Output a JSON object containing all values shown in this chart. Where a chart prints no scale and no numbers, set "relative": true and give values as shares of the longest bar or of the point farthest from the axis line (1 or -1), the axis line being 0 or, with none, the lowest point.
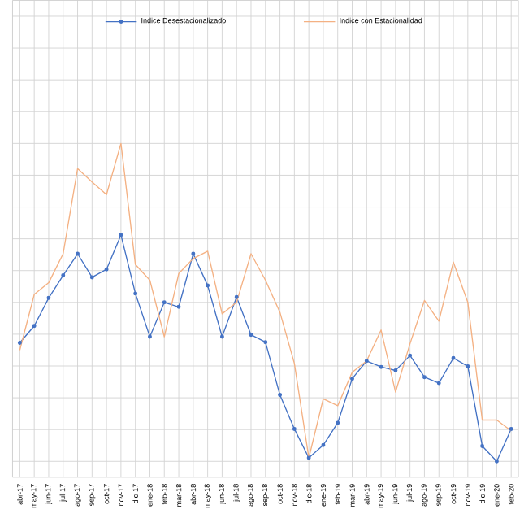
{
  "chart_data": {
    "type": "line",
    "relative": true,
    "grid": true,
    "legend": "top",
    "categories": [
      "abr-17",
      "may-17",
      "jun-17",
      "jul-17",
      "ago-17",
      "sep-17",
      "oct-17",
      "nov-17",
      "dic-17",
      "ene-18",
      "feb-18",
      "mar-18",
      "abr-18",
      "may-18",
      "jun-18",
      "jul-18",
      "ago-18",
      "sep-18",
      "oct-18",
      "nov-18",
      "dic-18",
      "ene-19",
      "feb-19",
      "mar-19",
      "abr-19",
      "may-19",
      "jun-19",
      "jul-19",
      "ago-19",
      "sep-19",
      "oct-19",
      "nov-19",
      "dic-19",
      "ene-20",
      "feb-20"
    ],
    "series": [
      {
        "name": "Indice Desestacionalizado",
        "color": "#4472c4",
        "marker": "circle",
        "values": [
          0.373,
          0.426,
          0.514,
          0.585,
          0.653,
          0.579,
          0.604,
          0.712,
          0.528,
          0.392,
          0.5,
          0.486,
          0.653,
          0.553,
          0.392,
          0.517,
          0.398,
          0.375,
          0.209,
          0.102,
          0.011,
          0.051,
          0.121,
          0.26,
          0.316,
          0.297,
          0.286,
          0.333,
          0.265,
          0.246,
          0.325,
          0.299,
          0.048,
          0,
          0.102
        ]
      },
      {
        "name": "Indice con Estacionalidad",
        "color": "#f4b183",
        "marker": "none",
        "values": [
          0.35,
          0.525,
          0.562,
          0.653,
          0.921,
          0.879,
          0.839,
          1,
          0.619,
          0.57,
          0.392,
          0.591,
          0.638,
          0.661,
          0.464,
          0.5,
          0.653,
          0.57,
          0.469,
          0.308,
          0.011,
          0.197,
          0.175,
          0.28,
          0.316,
          0.413,
          0.218,
          0.37,
          0.506,
          0.441,
          0.627,
          0.5,
          0.13,
          0.13,
          0.096
        ]
      }
    ]
  }
}
